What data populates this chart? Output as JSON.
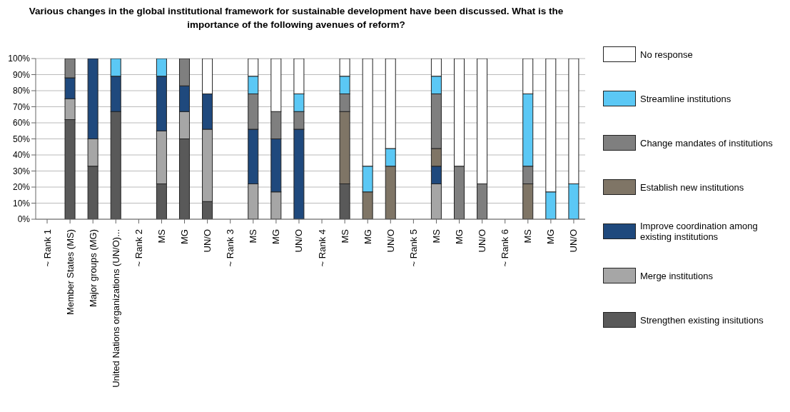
{
  "chart_data": {
    "type": "bar",
    "stacked": true,
    "title": "Various changes in the global institutional framework for sustainable development have been discussed. What is the importance of the following avenues of reform?",
    "categories": [
      "~ Rank 1",
      "Member States (MS)",
      "Major groups (MG)",
      "United Nations organizations (UN/O)...",
      "~ Rank 2",
      "MS",
      "MG",
      "UN/O",
      "~ Rank 3",
      "MS",
      "MG",
      "UN/O",
      "~ Rank 4",
      "MS",
      "MG",
      "UN/O",
      "~ Rank 5",
      "MS",
      "MG",
      "UN/O",
      "~ Rank 6",
      "MS",
      "MG",
      "UN/O"
    ],
    "series": [
      {
        "name": "Strengthen existing insitutions",
        "color": "#595959",
        "values": [
          null,
          62,
          33,
          67,
          null,
          22,
          50,
          11,
          null,
          0,
          0,
          0,
          null,
          22,
          0,
          0,
          null,
          0,
          0,
          0,
          null,
          0,
          0,
          0
        ]
      },
      {
        "name": "Merge institutions",
        "color": "#a6a6a6",
        "values": [
          null,
          13,
          17,
          0,
          null,
          33,
          17,
          45,
          null,
          22,
          17,
          0,
          null,
          0,
          0,
          0,
          null,
          22,
          0,
          0,
          null,
          0,
          0,
          0
        ]
      },
      {
        "name": "Improve coordination among existing institutions",
        "color": "#1f497d",
        "values": [
          null,
          13,
          50,
          22,
          null,
          34,
          16,
          22,
          null,
          34,
          33,
          56,
          null,
          0,
          0,
          0,
          null,
          11,
          0,
          0,
          null,
          0,
          0,
          0
        ]
      },
      {
        "name": "Establish new institutions",
        "color": "#7f7566",
        "values": [
          null,
          0,
          0,
          0,
          null,
          0,
          0,
          0,
          null,
          0,
          0,
          0,
          null,
          45,
          17,
          33,
          null,
          11,
          0,
          0,
          null,
          22,
          0,
          0
        ]
      },
      {
        "name": "Change mandates of institutions",
        "color": "#7f7f7f",
        "values": [
          null,
          12,
          0,
          0,
          null,
          0,
          17,
          0,
          null,
          22,
          17,
          11,
          null,
          11,
          0,
          0,
          null,
          34,
          33,
          22,
          null,
          11,
          0,
          0
        ]
      },
      {
        "name": "Streamline institutions",
        "color": "#5bc8f5",
        "values": [
          null,
          0,
          0,
          11,
          null,
          11,
          0,
          0,
          null,
          11,
          0,
          11,
          null,
          11,
          16,
          11,
          null,
          11,
          0,
          0,
          null,
          45,
          17,
          22
        ]
      },
      {
        "name": "No response",
        "color": "#ffffff",
        "values": [
          null,
          0,
          0,
          0,
          null,
          0,
          0,
          22,
          null,
          11,
          33,
          22,
          null,
          11,
          67,
          56,
          null,
          11,
          67,
          78,
          null,
          22,
          83,
          78
        ]
      }
    ],
    "ylim": [
      0,
      100
    ],
    "yticks": [
      {
        "value": 0,
        "label": "0%"
      },
      {
        "value": 10,
        "label": "10%"
      },
      {
        "value": 20,
        "label": "20%"
      },
      {
        "value": 30,
        "label": "30%"
      },
      {
        "value": 40,
        "label": "40%"
      },
      {
        "value": 50,
        "label": "50%"
      },
      {
        "value": 60,
        "label": "60%"
      },
      {
        "value": 70,
        "label": "70%"
      },
      {
        "value": 80,
        "label": "80%"
      },
      {
        "value": 90,
        "label": "90%"
      },
      {
        "value": 100,
        "label": "100%"
      }
    ],
    "grid": "y",
    "legend": "right"
  }
}
